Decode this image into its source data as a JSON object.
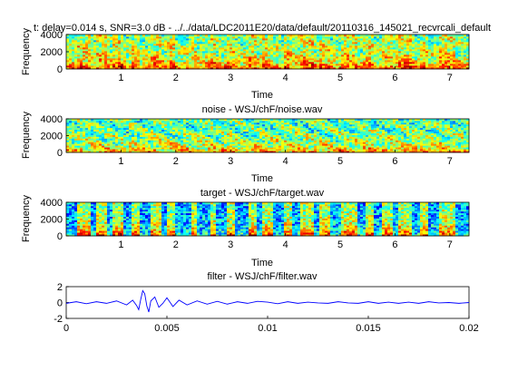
{
  "chart_data": [
    {
      "type": "heatmap",
      "title": "t: delay=0.014 s, SNR=3.0 dB - ../../data/LDC2011E20/data/default/20110316_145021_recvrcali_default",
      "xlabel": "Time",
      "ylabel": "Frequency",
      "xlim": [
        0,
        7.35
      ],
      "ylim": [
        0,
        4000
      ],
      "x_ticks": [
        1,
        2,
        3,
        4,
        5,
        6,
        7
      ],
      "y_ticks": [
        0,
        2000,
        4000
      ],
      "colormap": "jet",
      "style": "mixture"
    },
    {
      "type": "heatmap",
      "title": "noise - WSJ/chF/noise.wav",
      "xlabel": "Time",
      "ylabel": "Frequency",
      "xlim": [
        0,
        7.35
      ],
      "ylim": [
        0,
        4000
      ],
      "x_ticks": [
        1,
        2,
        3,
        4,
        5,
        6,
        7
      ],
      "y_ticks": [
        0,
        2000,
        4000
      ],
      "colormap": "jet",
      "style": "noise"
    },
    {
      "type": "heatmap",
      "title": "target - WSJ/chF/target.wav",
      "xlabel": "Time",
      "ylabel": "Frequency",
      "xlim": [
        0,
        7.35
      ],
      "ylim": [
        0,
        4000
      ],
      "x_ticks": [
        1,
        2,
        3,
        4,
        5,
        6,
        7
      ],
      "y_ticks": [
        0,
        2000,
        4000
      ],
      "colormap": "jet",
      "style": "target"
    },
    {
      "type": "line",
      "title": "filter - WSJ/chF/filter.wav",
      "xlabel": "",
      "ylabel": "",
      "xlim": [
        0,
        0.02
      ],
      "ylim": [
        -2,
        2
      ],
      "x_ticks": [
        0,
        0.005,
        0.01,
        0.015,
        0.02
      ],
      "y_ticks": [
        -2,
        0,
        2
      ],
      "line_color": "#0000ff",
      "series": [
        {
          "x": [
            0,
            0.0005,
            0.001,
            0.0015,
            0.002,
            0.0025,
            0.003,
            0.0033,
            0.0035,
            0.0036,
            0.0037,
            0.0038,
            0.0039,
            0.004,
            0.0041,
            0.0042,
            0.0044,
            0.0046,
            0.0048,
            0.005,
            0.0053,
            0.0056,
            0.006,
            0.0065,
            0.007,
            0.0075,
            0.008,
            0.0085,
            0.009,
            0.0095,
            0.01,
            0.0105,
            0.011,
            0.0115,
            0.012,
            0.0125,
            0.013,
            0.0135,
            0.014,
            0.0145,
            0.015,
            0.0155,
            0.016,
            0.0165,
            0.017,
            0.0175,
            0.018,
            0.0185,
            0.019,
            0.0195,
            0.02
          ],
          "values": [
            -0.1,
            0.1,
            -0.15,
            0.1,
            -0.1,
            0.2,
            -0.3,
            0.3,
            -0.4,
            -0.9,
            0.4,
            1.5,
            1.1,
            -0.4,
            -1.2,
            0.2,
            0.7,
            -0.6,
            -0.1,
            0.6,
            -0.5,
            0.3,
            -0.3,
            0.2,
            -0.2,
            0.15,
            -0.2,
            0.1,
            -0.1,
            0.15,
            0.05,
            -0.15,
            0.1,
            -0.1,
            0.05,
            -0.05,
            -0.1,
            0.1,
            -0.05,
            -0.1,
            0.1,
            -0.1,
            0.05,
            -0.1,
            0.05,
            -0.1,
            0.1,
            -0.05,
            0.0,
            -0.1,
            0.0
          ]
        }
      ]
    }
  ]
}
